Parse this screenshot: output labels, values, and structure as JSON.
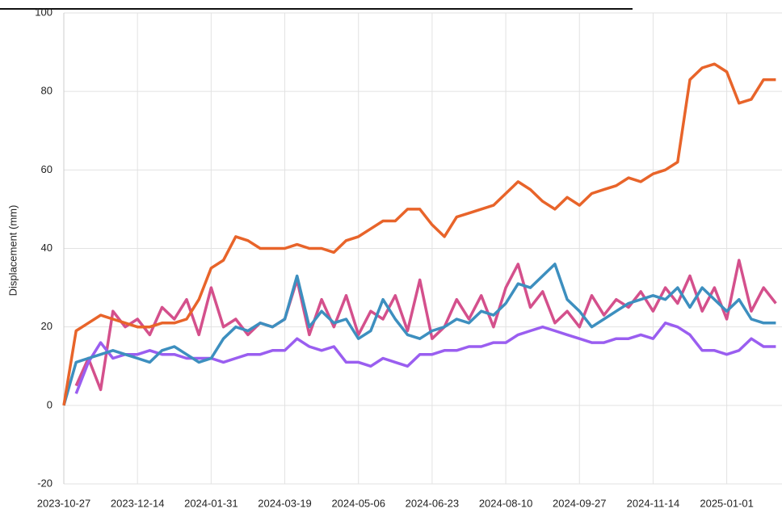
{
  "chart_data": {
    "type": "line",
    "y_label": "Displacement (mm)",
    "x": [
      "2023-10-27",
      "2023-11-04",
      "2023-11-12",
      "2023-11-20",
      "2023-11-28",
      "2023-12-06",
      "2023-12-14",
      "2023-12-22",
      "2023-12-30",
      "2024-01-07",
      "2024-01-15",
      "2024-01-23",
      "2024-01-31",
      "2024-02-08",
      "2024-02-16",
      "2024-02-24",
      "2024-03-03",
      "2024-03-11",
      "2024-03-19",
      "2024-03-27",
      "2024-04-04",
      "2024-04-12",
      "2024-04-20",
      "2024-04-28",
      "2024-05-06",
      "2024-05-14",
      "2024-05-22",
      "2024-05-30",
      "2024-06-07",
      "2024-06-15",
      "2024-06-23",
      "2024-07-01",
      "2024-07-09",
      "2024-07-17",
      "2024-07-25",
      "2024-08-02",
      "2024-08-10",
      "2024-08-18",
      "2024-08-26",
      "2024-09-03",
      "2024-09-11",
      "2024-09-19",
      "2024-09-27",
      "2024-10-05",
      "2024-10-13",
      "2024-10-21",
      "2024-10-29",
      "2024-11-06",
      "2024-11-14",
      "2024-11-22",
      "2024-11-30",
      "2024-12-08",
      "2024-12-16",
      "2024-12-24",
      "2025-01-01",
      "2025-01-09",
      "2025-01-17",
      "2025-01-25",
      "2025-02-02"
    ],
    "xlim": [
      "2023-10-27",
      "2025-02-06"
    ],
    "xticks": [
      "2023-10-27",
      "2023-12-14",
      "2024-01-31",
      "2024-03-19",
      "2024-05-06",
      "2024-06-23",
      "2024-08-10",
      "2024-09-27",
      "2024-11-14",
      "2025-01-01"
    ],
    "ylim": [
      -20,
      100
    ],
    "yticks": [
      -20,
      0,
      20,
      40,
      60,
      80,
      100
    ],
    "grid": true,
    "series": [
      {
        "color": "#d4508c",
        "values": [
          null,
          5,
          12,
          4,
          24,
          20,
          22,
          18,
          25,
          22,
          27,
          18,
          30,
          20,
          22,
          18,
          21,
          20,
          22,
          32,
          18,
          27,
          20,
          28,
          18,
          24,
          22,
          28,
          19,
          32,
          17,
          20,
          27,
          22,
          28,
          20,
          30,
          36,
          25,
          29,
          21,
          24,
          20,
          28,
          23,
          27,
          25,
          29,
          24,
          30,
          26,
          33,
          24,
          30,
          22,
          37,
          24,
          30,
          26
        ]
      },
      {
        "color": "#9a5ef0",
        "values": [
          null,
          3,
          11,
          16,
          12,
          13,
          13,
          14,
          13,
          13,
          12,
          12,
          12,
          11,
          12,
          13,
          13,
          14,
          14,
          17,
          15,
          14,
          15,
          11,
          11,
          10,
          12,
          11,
          10,
          13,
          13,
          14,
          14,
          15,
          15,
          16,
          16,
          18,
          19,
          20,
          19,
          18,
          17,
          16,
          16,
          17,
          17,
          18,
          17,
          21,
          20,
          18,
          14,
          14,
          13,
          14,
          17,
          15,
          15
        ]
      },
      {
        "color": "#3d8fbf",
        "values": [
          0,
          11,
          12,
          13,
          14,
          13,
          12,
          11,
          14,
          15,
          13,
          11,
          12,
          17,
          20,
          19,
          21,
          20,
          22,
          33,
          20,
          24,
          21,
          22,
          17,
          19,
          27,
          22,
          18,
          17,
          19,
          20,
          22,
          21,
          24,
          23,
          26,
          31,
          30,
          33,
          36,
          27,
          24,
          20,
          22,
          24,
          26,
          27,
          28,
          27,
          30,
          25,
          30,
          27,
          24,
          27,
          22,
          21,
          21
        ]
      },
      {
        "color": "#e8642a",
        "values": [
          0,
          19,
          21,
          23,
          22,
          21,
          20,
          20,
          21,
          21,
          22,
          27,
          35,
          37,
          43,
          42,
          40,
          40,
          40,
          41,
          40,
          40,
          39,
          42,
          43,
          45,
          47,
          47,
          50,
          50,
          46,
          43,
          48,
          49,
          50,
          51,
          54,
          57,
          55,
          52,
          50,
          53,
          51,
          54,
          55,
          56,
          58,
          57,
          59,
          60,
          62,
          83,
          86,
          87,
          85,
          77,
          78,
          83,
          83
        ]
      }
    ]
  }
}
